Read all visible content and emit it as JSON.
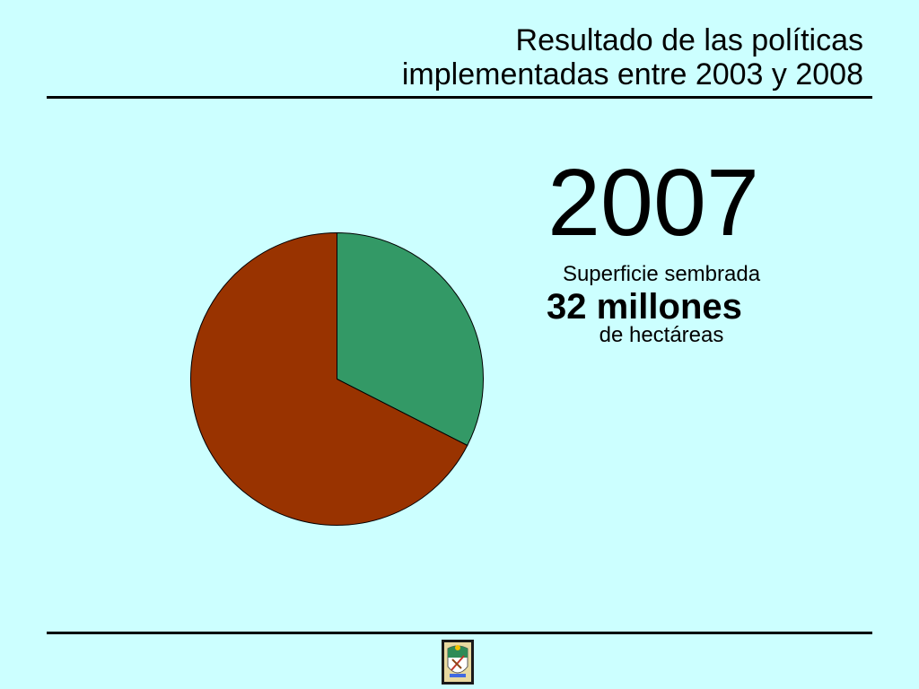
{
  "header": {
    "title_line1": "Resultado de las políticas",
    "title_line2": "implementadas entre 2003 y 2008"
  },
  "info": {
    "year": "2007",
    "label_top": "Superficie sembrada",
    "big_value": "32 millones",
    "label_bottom": "de hectáreas"
  },
  "colors": {
    "background": "#ccffff",
    "slice_a": "#339966",
    "slice_b": "#993300"
  },
  "chart_data": {
    "type": "pie",
    "title": "",
    "slices": [
      {
        "value": 32.5,
        "color": "#339966"
      },
      {
        "value": 67.5,
        "color": "#993300"
      }
    ],
    "start_angle_deg": 0,
    "direction": "clockwise",
    "legend": "none"
  },
  "footer": {
    "logo_icon": "coat-of-arms-icon"
  }
}
